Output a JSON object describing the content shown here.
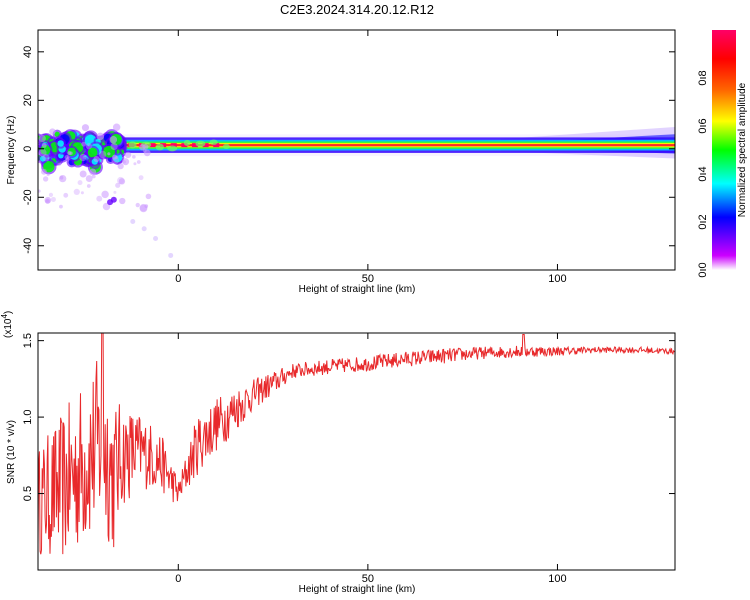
{
  "title": "C2E3.2024.314.20.12.R12",
  "chart_data": [
    {
      "type": "heatmap",
      "xlabel": "Height of straight line (km)",
      "ylabel": "Frequency (Hz)",
      "xlim": [
        -37,
        131
      ],
      "ylim": [
        -50,
        49
      ],
      "xticks": [
        0,
        50,
        100
      ],
      "yticks": [
        -40,
        -20,
        0,
        20,
        40
      ],
      "ridge_frequency_hz": 1.5,
      "colorbar": {
        "label": "Normalized spectral amplitude",
        "range": [
          0.0,
          1.0
        ],
        "ticks": [
          "0.0",
          "0.2",
          "0.4",
          "0.6",
          "0.8"
        ],
        "colormap": [
          "#ffffff",
          "#cc00ff",
          "#6600ff",
          "#0000ff",
          "#00ffff",
          "#00ff00",
          "#ffff00",
          "#ff6600",
          "#ff0000",
          "#ff0066"
        ]
      }
    },
    {
      "type": "line",
      "xlabel": "Height of straight line (km)",
      "ylabel": "SNR (10 * v/v)",
      "multiplier": "(x10",
      "multiplier_exp": "4",
      "xlim": [
        -37,
        131
      ],
      "ylim": [
        0.0,
        1.55
      ],
      "xticks": [
        0,
        50,
        100
      ],
      "yticks": [
        "0.5",
        "1.0",
        "1.5"
      ],
      "series_color": "#e8292b",
      "envelope": {
        "x": [
          -37,
          -30,
          -25,
          -20,
          -17,
          -15,
          -10,
          -5,
          -1,
          0,
          5,
          10,
          15,
          20,
          25,
          30,
          40,
          50,
          60,
          70,
          80,
          90,
          100,
          110,
          120,
          131
        ],
        "mean": [
          0.45,
          0.55,
          0.7,
          0.85,
          0.6,
          0.75,
          0.78,
          0.72,
          0.55,
          0.5,
          0.82,
          0.95,
          1.05,
          1.15,
          1.22,
          1.3,
          1.33,
          1.35,
          1.38,
          1.4,
          1.42,
          1.43,
          1.43,
          1.44,
          1.44,
          1.43
        ],
        "amplitude": [
          0.35,
          0.5,
          0.55,
          0.6,
          0.5,
          0.35,
          0.25,
          0.2,
          0.12,
          0.08,
          0.2,
          0.18,
          0.15,
          0.1,
          0.08,
          0.05,
          0.05,
          0.05,
          0.05,
          0.05,
          0.04,
          0.04,
          0.03,
          0.02,
          0.02,
          0.02
        ]
      }
    }
  ]
}
